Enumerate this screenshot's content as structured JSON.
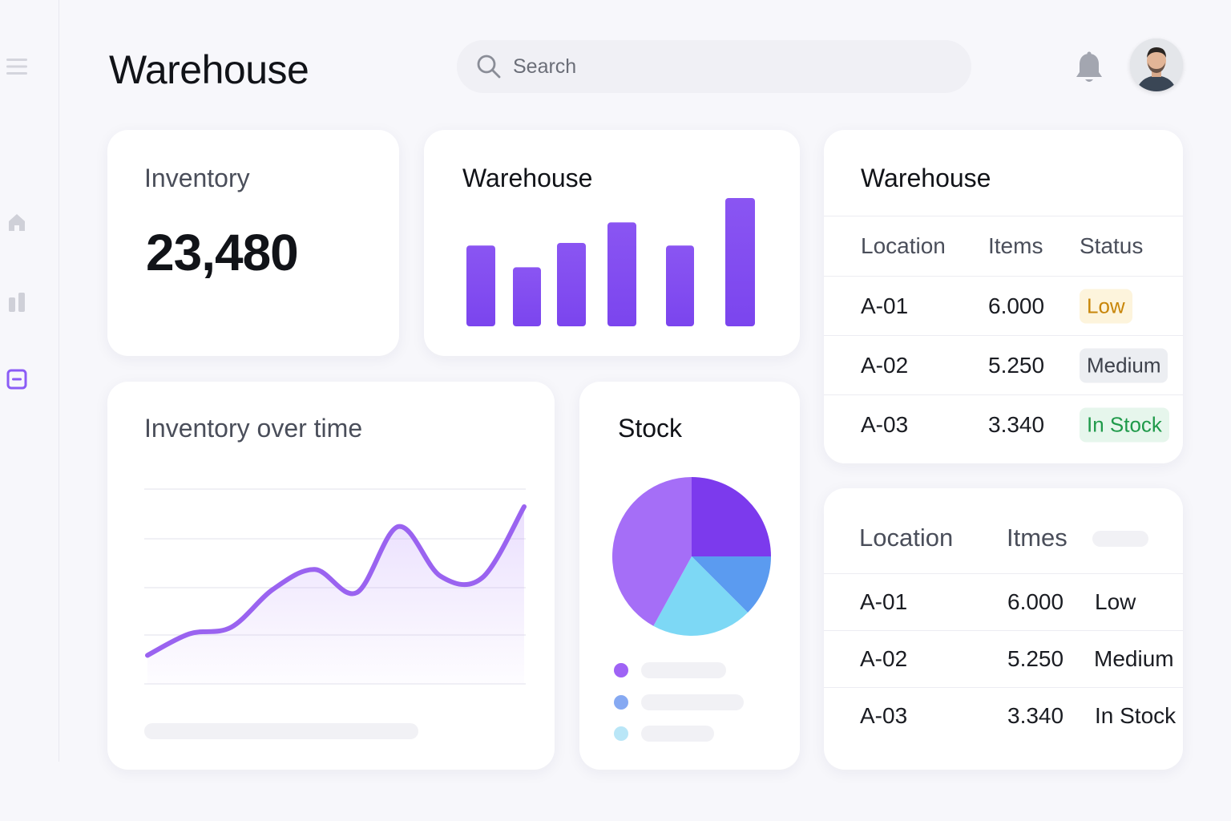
{
  "header": {
    "title": "Warehouse",
    "search_placeholder": "Search"
  },
  "icons": {
    "sidebar": [
      "menu-icon",
      "home-icon",
      "bar-chart-icon",
      "inventory-box-icon"
    ],
    "header": [
      "search-icon",
      "bell-icon"
    ]
  },
  "colors": {
    "accent": "#7c4dff",
    "bar": "#8b5cf6",
    "line": "#9a63f0",
    "low_bg": "#fdf4dc",
    "low_text": "#c8860a",
    "medium_bg": "#eceef2",
    "medium_text": "#3d414b",
    "instock_bg": "#e6f6ec",
    "instock_text": "#1f9a4a"
  },
  "inventory_card": {
    "title": "Inventory",
    "value": "23,480"
  },
  "warehouse_bar_card": {
    "title": "Warehouse",
    "chart_data": {
      "type": "bar",
      "values": [
        0.63,
        0.46,
        0.65,
        0.81,
        0.63,
        1.0
      ]
    }
  },
  "warehouse_table": {
    "title": "Warehouse",
    "headers": [
      "Location",
      "Items",
      "Status"
    ],
    "rows": [
      {
        "location": "A-01",
        "items": "6.000",
        "status": "Low",
        "tone": "low"
      },
      {
        "location": "A-02",
        "items": "5.250",
        "status": "Medium",
        "tone": "medium"
      },
      {
        "location": "A-03",
        "items": "3.340",
        "status": "In Stock",
        "tone": "instock"
      }
    ]
  },
  "inventory_time_card": {
    "title": "Inventory over time",
    "chart_data": {
      "type": "area",
      "values": [
        0.1,
        0.23,
        0.27,
        0.5,
        0.62,
        0.48,
        0.88,
        0.58,
        0.57,
        1.0
      ]
    }
  },
  "stock_card": {
    "title": "Stock",
    "chart_data": {
      "type": "pie",
      "slices": [
        {
          "value": 25,
          "color": "#7c3aed"
        },
        {
          "value": 12.5,
          "color": "#5b9bf0"
        },
        {
          "value": 20.5,
          "color": "#7dd8f5"
        },
        {
          "value": 42,
          "color": "#a56ef7"
        }
      ]
    },
    "legend_colors": [
      "#9f63f5",
      "#86a9f2",
      "#b9e6f7"
    ]
  },
  "second_table": {
    "headers": [
      "Location",
      "Itmes"
    ],
    "rows": [
      {
        "location": "A-01",
        "items": "6.000",
        "status": "Low"
      },
      {
        "location": "A-02",
        "items": "5.250",
        "status": "Medium"
      },
      {
        "location": "A-03",
        "items": "3.340",
        "status": "In Stock"
      }
    ]
  }
}
